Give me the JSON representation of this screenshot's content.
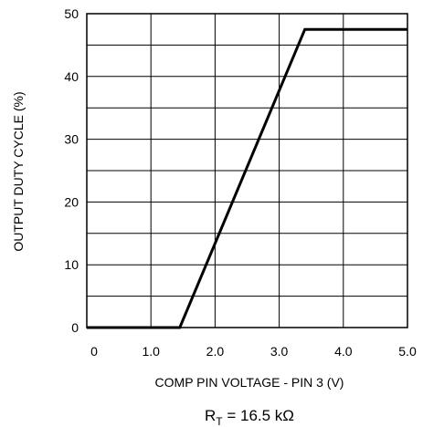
{
  "chart_data": {
    "type": "line",
    "xlabel": "COMP PIN VOLTAGE - PIN 3 (V)",
    "ylabel": "OUTPUT DUTY CYCLE (%)",
    "xlim": [
      0,
      5.0
    ],
    "ylim": [
      0,
      50
    ],
    "grid": true,
    "x_ticks": [
      0,
      1.0,
      2.0,
      3.0,
      4.0,
      5.0
    ],
    "x_tick_labels": [
      "0",
      "1.0",
      "2.0",
      "3.0",
      "4.0",
      "5.0"
    ],
    "y_ticks": [
      0,
      10,
      20,
      30,
      40,
      50
    ],
    "y_tick_labels": [
      "0",
      "10",
      "20",
      "30",
      "40",
      "50"
    ],
    "minor_y_gridlines": [
      5,
      15,
      25,
      35,
      45
    ],
    "condition": {
      "prefix": "R",
      "subscript": "T",
      "text": " = 16.5 kΩ"
    },
    "series": [
      {
        "points": [
          {
            "x": 0.0,
            "y": 0
          },
          {
            "x": 1.45,
            "y": 0
          },
          {
            "x": 3.4,
            "y": 47.5
          },
          {
            "x": 5.0,
            "y": 47.5
          }
        ]
      }
    ]
  }
}
